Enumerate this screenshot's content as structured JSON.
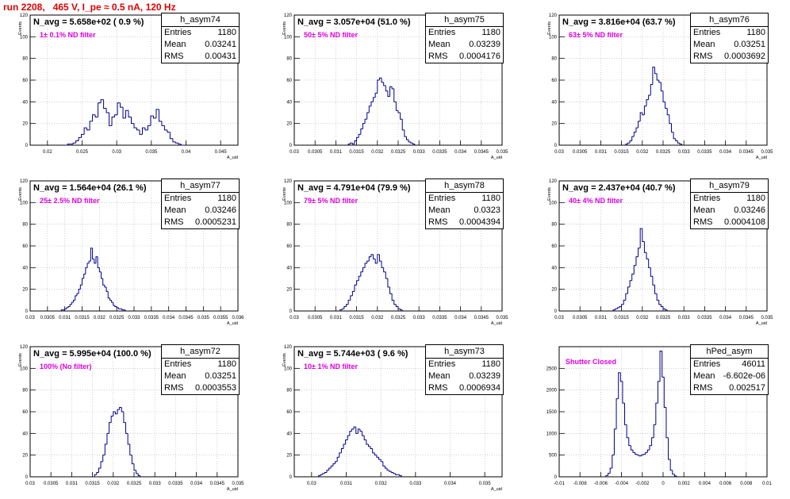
{
  "title": "run 2208,   465 V, I_pe ≈ 0.5 nA, 120 Hz",
  "colors": {
    "title": "#e00000",
    "hist": "#00008b",
    "filter_label": "#e000e0",
    "grid": "#b0b0b0"
  },
  "chart_data": [
    {
      "type": "histogram",
      "hist_name": "h_asym74",
      "navg": "N_avg = 5.658e+02 ( 0.9 %)",
      "filter": "1± 0.1% ND filter",
      "entries": "1180",
      "mean": "0.03241",
      "rms": "0.00431",
      "ylabel": "Events",
      "xlabel": "A_uid",
      "xlim": [
        0.0175,
        0.0475
      ],
      "ylim": [
        0,
        120
      ],
      "yticks": [
        0,
        20,
        40,
        60,
        80,
        100,
        120
      ],
      "yticklabels": [
        "0",
        "20",
        "40",
        "60",
        "80",
        "100",
        "120"
      ],
      "xticks": [
        0.02,
        0.025,
        0.03,
        0.035,
        0.04,
        0.045
      ],
      "xticklabels": [
        "0.02",
        "0.025",
        "0.03",
        "0.035",
        "0.04",
        "0.045"
      ],
      "bins": {
        "start": 0.0225,
        "step": 0.0004,
        "counts": [
          0,
          1,
          1,
          2,
          4,
          7,
          10,
          16,
          14,
          22,
          28,
          26,
          39,
          42,
          34,
          30,
          18,
          26,
          28,
          39,
          35,
          25,
          32,
          26,
          20,
          16,
          14,
          10,
          16,
          14,
          18,
          27,
          25,
          33,
          22,
          18,
          14,
          12,
          6,
          3,
          2,
          1,
          0
        ]
      }
    },
    {
      "type": "histogram",
      "hist_name": "h_asym75",
      "navg": "N_avg = 3.057e+04 (51.0 %)",
      "filter": "50± 5% ND filter",
      "entries": "1180",
      "mean": "0.03239",
      "rms": "0.0004176",
      "ylabel": "Events",
      "xlabel": "A_uid",
      "xlim": [
        0.03,
        0.035
      ],
      "ylim": [
        0,
        120
      ],
      "yticks": [
        0,
        20,
        40,
        60,
        80,
        100,
        120
      ],
      "yticklabels": [
        "0",
        "20",
        "40",
        "60",
        "80",
        "100",
        "120"
      ],
      "xticks": [
        0.03,
        0.0305,
        0.031,
        0.0315,
        0.032,
        0.0325,
        0.033,
        0.0335,
        0.034,
        0.0345,
        0.035
      ],
      "xticklabels": [
        "0.03",
        "0.0305",
        "0.031",
        "0.0315",
        "0.032",
        "0.0325",
        "0.033",
        "0.0335",
        "0.034",
        "0.0345",
        "0.035"
      ],
      "bins": {
        "start": 0.0313,
        "step": 5e-05,
        "counts": [
          1,
          2,
          1,
          4,
          7,
          10,
          15,
          20,
          24,
          30,
          36,
          40,
          44,
          48,
          60,
          62,
          58,
          55,
          50,
          45,
          54,
          52,
          40,
          32,
          30,
          24,
          14,
          8,
          5,
          3,
          2,
          1
        ]
      }
    },
    {
      "type": "histogram",
      "hist_name": "h_asym76",
      "navg": "N_avg = 3.816e+04 (63.7 %)",
      "filter": "63± 5% ND filter",
      "entries": "1180",
      "mean": "0.03251",
      "rms": "0.0003692",
      "ylabel": "Events",
      "xlabel": "A_uid",
      "xlim": [
        0.03,
        0.035
      ],
      "ylim": [
        0,
        120
      ],
      "yticks": [
        0,
        20,
        40,
        60,
        80,
        100,
        120
      ],
      "yticklabels": [
        "0",
        "20",
        "40",
        "60",
        "80",
        "100",
        "120"
      ],
      "xticks": [
        0.03,
        0.0305,
        0.031,
        0.0315,
        0.032,
        0.0325,
        0.033,
        0.0335,
        0.034,
        0.0345,
        0.035
      ],
      "xticklabels": [
        "0.03",
        "0.0305",
        "0.031",
        "0.0315",
        "0.032",
        "0.0325",
        "0.033",
        "0.0335",
        "0.034",
        "0.0345",
        "0.035"
      ],
      "bins": {
        "start": 0.0316,
        "step": 5e-05,
        "counts": [
          1,
          2,
          4,
          8,
          12,
          16,
          22,
          30,
          28,
          36,
          42,
          46,
          56,
          72,
          66,
          60,
          58,
          50,
          40,
          34,
          28,
          20,
          12,
          6,
          4,
          2,
          1
        ]
      }
    },
    {
      "type": "histogram",
      "hist_name": "h_asym77",
      "navg": "N_avg = 1.564e+04 (26.1 %)",
      "filter": "25± 2.5% ND filter",
      "entries": "1180",
      "mean": "0.03246",
      "rms": "0.0005231",
      "ylabel": "Events",
      "xlabel": "A_uid",
      "xlim": [
        0.03,
        0.036
      ],
      "ylim": [
        0,
        120
      ],
      "yticks": [
        0,
        20,
        40,
        60,
        80,
        100,
        120
      ],
      "yticklabels": [
        "0",
        "20",
        "40",
        "60",
        "80",
        "100",
        "120"
      ],
      "xticks": [
        0.03,
        0.0305,
        0.031,
        0.0315,
        0.032,
        0.0325,
        0.033,
        0.0335,
        0.034,
        0.0345,
        0.035,
        0.0355,
        0.036
      ],
      "xticklabels": [
        "0.03",
        "0.0305",
        "0.031",
        "0.0315",
        "0.032",
        "0.0325",
        "0.033",
        "0.0335",
        "0.034",
        "0.0345",
        "0.035",
        "0.0355",
        "0.036"
      ],
      "bins": {
        "start": 0.0309,
        "step": 5e-05,
        "counts": [
          1,
          1,
          2,
          3,
          4,
          6,
          8,
          10,
          14,
          16,
          20,
          24,
          30,
          34,
          40,
          44,
          46,
          58,
          48,
          44,
          50,
          40,
          36,
          30,
          24,
          22,
          18,
          12,
          10,
          8,
          5,
          4,
          3,
          2,
          2,
          1,
          1
        ]
      }
    },
    {
      "type": "histogram",
      "hist_name": "h_asym78",
      "navg": "N_avg = 4.791e+04 (79.9 %)",
      "filter": "79± 5% ND filter",
      "entries": "1180",
      "mean": "0.0323",
      "rms": "0.0004394",
      "ylabel": "Events",
      "xlabel": "A_uid",
      "xlim": [
        0.03,
        0.035
      ],
      "ylim": [
        0,
        120
      ],
      "yticks": [
        0,
        20,
        40,
        60,
        80,
        100,
        120
      ],
      "yticklabels": [
        "0",
        "20",
        "40",
        "60",
        "80",
        "100",
        "120"
      ],
      "xticks": [
        0.03,
        0.0305,
        0.031,
        0.0315,
        0.032,
        0.0325,
        0.033,
        0.0335,
        0.034,
        0.0345,
        0.035
      ],
      "xticklabels": [
        "0.03",
        "0.0305",
        "0.031",
        "0.0315",
        "0.032",
        "0.0325",
        "0.033",
        "0.0335",
        "0.034",
        "0.0345",
        "0.035"
      ],
      "bins": {
        "start": 0.0311,
        "step": 5e-05,
        "counts": [
          1,
          2,
          4,
          6,
          10,
          14,
          18,
          24,
          28,
          32,
          36,
          40,
          44,
          46,
          50,
          52,
          48,
          44,
          52,
          46,
          40,
          36,
          30,
          22,
          16,
          10,
          6,
          4,
          2,
          1
        ]
      }
    },
    {
      "type": "histogram",
      "hist_name": "h_asym79",
      "navg": "N_avg = 2.437e+04 (40.7 %)",
      "filter": "40± 4% ND filter",
      "entries": "1180",
      "mean": "0.03246",
      "rms": "0.0004108",
      "ylabel": "Events",
      "xlabel": "A_uid",
      "xlim": [
        0.03,
        0.035
      ],
      "ylim": [
        0,
        120
      ],
      "yticks": [
        0,
        20,
        40,
        60,
        80,
        100,
        120
      ],
      "yticklabels": [
        "0",
        "20",
        "40",
        "60",
        "80",
        "100",
        "120"
      ],
      "xticks": [
        0.03,
        0.0305,
        0.031,
        0.0315,
        0.032,
        0.0325,
        0.033,
        0.0335,
        0.034,
        0.0345,
        0.035
      ],
      "xticklabels": [
        "0.03",
        "0.0305",
        "0.031",
        "0.0315",
        "0.032",
        "0.0325",
        "0.033",
        "0.0335",
        "0.034",
        "0.0345",
        "0.035"
      ],
      "bins": {
        "start": 0.0313,
        "step": 5e-05,
        "counts": [
          1,
          2,
          3,
          4,
          6,
          10,
          16,
          22,
          28,
          34,
          42,
          50,
          58,
          76,
          64,
          54,
          48,
          40,
          32,
          24,
          16,
          10,
          6,
          4,
          2,
          1
        ]
      }
    },
    {
      "type": "histogram",
      "hist_name": "h_asym72",
      "navg": "N_avg = 5.995e+04 (100.0 %)",
      "filter": "100% (No filter)",
      "entries": "1180",
      "mean": "0.03251",
      "rms": "0.0003553",
      "ylabel": "Events",
      "xlabel": "A_uid",
      "xlim": [
        0.03,
        0.035
      ],
      "ylim": [
        0,
        120
      ],
      "yticks": [
        0,
        20,
        40,
        60,
        80,
        100,
        120
      ],
      "yticklabels": [
        "0",
        "20",
        "40",
        "60",
        "80",
        "100",
        "120"
      ],
      "xticks": [
        0.03,
        0.0305,
        0.031,
        0.0315,
        0.032,
        0.0325,
        0.033,
        0.0335,
        0.034,
        0.0345,
        0.035
      ],
      "xticklabels": [
        "0.03",
        "0.0305",
        "0.031",
        "0.0315",
        "0.032",
        "0.0325",
        "0.033",
        "0.0335",
        "0.034",
        "0.0345",
        "0.035"
      ],
      "bins": {
        "start": 0.03155,
        "step": 5e-05,
        "counts": [
          2,
          4,
          8,
          14,
          20,
          30,
          40,
          50,
          56,
          60,
          58,
          62,
          64,
          60,
          50,
          40,
          30,
          20,
          12,
          6,
          3,
          1
        ]
      }
    },
    {
      "type": "histogram",
      "hist_name": "h_asym73",
      "navg": "N_avg = 5.744e+03 ( 9.6 %)",
      "filter": "10± 1% ND filter",
      "entries": "1180",
      "mean": "0.03239",
      "rms": "0.0006934",
      "ylabel": "Events",
      "xlabel": "A_uid",
      "xlim": [
        0.0295,
        0.0355
      ],
      "ylim": [
        0,
        120
      ],
      "yticks": [
        0,
        20,
        40,
        60,
        80,
        100,
        120
      ],
      "yticklabels": [
        "0",
        "20",
        "40",
        "60",
        "80",
        "100",
        "120"
      ],
      "xticks": [
        0.03,
        0.031,
        0.032,
        0.033,
        0.034,
        0.035
      ],
      "xticklabels": [
        "0.03",
        "0.031",
        "0.032",
        "0.033",
        "0.034",
        "0.035"
      ],
      "bins": {
        "start": 0.0302,
        "step": 6e-05,
        "counts": [
          1,
          2,
          3,
          4,
          6,
          8,
          10,
          12,
          14,
          18,
          22,
          26,
          30,
          34,
          38,
          42,
          44,
          46,
          40,
          44,
          42,
          38,
          34,
          30,
          28,
          26,
          22,
          20,
          18,
          16,
          14,
          10,
          8,
          6,
          5,
          4,
          3,
          2,
          2,
          1
        ]
      }
    },
    {
      "type": "histogram",
      "hist_name": "hPed_asym",
      "navg": "",
      "filter": "Shutter Closed",
      "entries": "46011",
      "mean": "-6.602e-06",
      "rms": "0.002517",
      "ylabel": "",
      "xlabel": "",
      "xlim": [
        -0.01,
        0.01
      ],
      "ylim": [
        0,
        3000
      ],
      "yticks": [
        0,
        500,
        1000,
        1500,
        2000,
        2500
      ],
      "yticklabels": [
        "0",
        "500",
        "1000",
        "1500",
        "2000",
        "2500"
      ],
      "xticks": [
        -0.01,
        -0.008,
        -0.006,
        -0.004,
        -0.002,
        0,
        0.002,
        0.004,
        0.006,
        0.008,
        0.01
      ],
      "xticklabels": [
        "-0.01",
        "-0.008",
        "-0.006",
        "-0.004",
        "-0.002",
        "0",
        "0.002",
        "0.004",
        "0.006",
        "0.008",
        "0.01"
      ],
      "bins": {
        "start": -0.0055,
        "step": 0.0002,
        "counts": [
          30,
          80,
          200,
          500,
          1100,
          1800,
          2400,
          2200,
          1700,
          1200,
          900,
          720,
          620,
          560,
          520,
          500,
          480,
          500,
          520,
          560,
          620,
          720,
          900,
          1200,
          1700,
          2200,
          2900,
          2300,
          1600,
          900,
          400,
          150,
          60,
          20
        ]
      }
    }
  ]
}
